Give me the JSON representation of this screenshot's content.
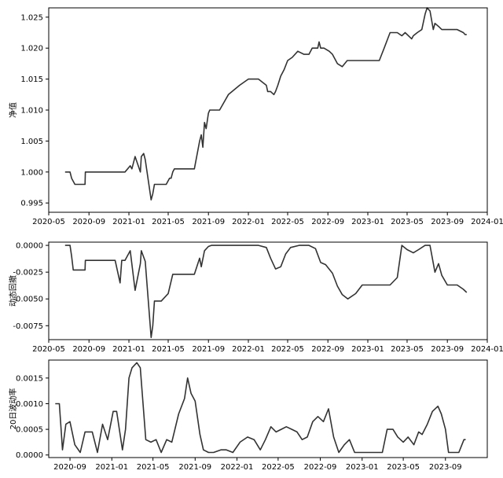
{
  "chart_data": [
    {
      "type": "line",
      "title": "",
      "xlabel": "",
      "ylabel": "净值",
      "xlim": [
        "2020-05-01",
        "2024-01-01"
      ],
      "ylim": [
        0.9935,
        1.0265
      ],
      "x_ticks": [
        "2020-05",
        "2020-09",
        "2021-01",
        "2021-05",
        "2021-09",
        "2022-01",
        "2022-05",
        "2022-09",
        "2023-01",
        "2023-05",
        "2023-09",
        "2024-01"
      ],
      "y_ticks": [
        0.995,
        1.0,
        1.005,
        1.01,
        1.015,
        1.02,
        1.025
      ],
      "y_tick_labels": [
        "0.995",
        "1.000",
        "1.005",
        "1.010",
        "1.015",
        "1.020",
        "1.025"
      ],
      "color": "#333333",
      "series": [
        {
          "x": [
            "2020-06-20",
            "2020-07-05",
            "2020-07-10",
            "2020-07-15",
            "2020-07-20",
            "2020-07-25",
            "2020-08-10",
            "2020-08-20",
            "2020-08-21",
            "2020-09-05",
            "2020-10-05",
            "2020-10-25",
            "2020-11-05",
            "2020-11-20",
            "2020-12-10",
            "2020-12-20",
            "2021-01-05",
            "2021-01-10",
            "2021-01-20",
            "2021-02-05",
            "2021-02-08",
            "2021-02-15",
            "2021-02-20",
            "2021-03-10",
            "2021-03-15",
            "2021-03-20",
            "2021-03-25",
            "2021-04-10",
            "2021-04-20",
            "2021-04-25",
            "2021-05-05",
            "2021-05-10",
            "2021-05-15",
            "2021-05-20",
            "2021-05-25",
            "2021-06-01",
            "2021-06-10",
            "2021-07-20",
            "2021-08-05",
            "2021-08-10",
            "2021-08-15",
            "2021-08-20",
            "2021-08-25",
            "2021-09-01",
            "2021-09-05",
            "2021-09-15",
            "2021-10-05",
            "2021-11-01",
            "2021-12-05",
            "2022-01-01",
            "2022-01-10",
            "2022-02-01",
            "2022-02-25",
            "2022-03-01",
            "2022-03-10",
            "2022-03-20",
            "2022-03-25",
            "2022-04-01",
            "2022-04-10",
            "2022-04-20",
            "2022-05-01",
            "2022-05-15",
            "2022-06-01",
            "2022-06-20",
            "2022-07-05",
            "2022-07-15",
            "2022-08-01",
            "2022-08-05",
            "2022-08-10",
            "2022-08-20",
            "2022-09-05",
            "2022-09-15",
            "2022-09-30",
            "2022-10-15",
            "2022-10-30",
            "2022-11-10",
            "2022-11-25",
            "2022-12-10",
            "2023-01-10",
            "2023-02-05",
            "2023-02-20",
            "2023-03-10",
            "2023-04-01",
            "2023-04-15",
            "2023-04-25",
            "2023-05-15",
            "2023-05-20",
            "2023-06-01",
            "2023-06-15",
            "2023-06-25",
            "2023-07-01",
            "2023-07-10",
            "2023-07-20",
            "2023-07-25",
            "2023-08-05",
            "2023-08-15",
            "2023-09-01",
            "2023-10-01",
            "2023-10-20",
            "2023-10-25",
            "2023-10-30"
          ],
          "y": [
            1.0,
            1.0,
            0.999,
            0.9985,
            0.998,
            0.998,
            0.998,
            0.998,
            1.0,
            1.0,
            1.0,
            1.0,
            1.0,
            1.0,
            1.0,
            1.0,
            1.001,
            1.0005,
            1.0025,
            1.0,
            1.0025,
            1.003,
            1.002,
            0.9955,
            0.9965,
            0.998,
            0.998,
            0.998,
            0.998,
            0.998,
            0.999,
            0.999,
            1.0,
            1.0005,
            1.0005,
            1.0005,
            1.0005,
            1.0005,
            1.005,
            1.006,
            1.004,
            1.008,
            1.007,
            1.0095,
            1.01,
            1.01,
            1.01,
            1.0125,
            1.014,
            1.015,
            1.015,
            1.015,
            1.014,
            1.013,
            1.013,
            1.0125,
            1.013,
            1.014,
            1.0155,
            1.0165,
            1.018,
            1.0185,
            1.0195,
            1.019,
            1.019,
            1.02,
            1.02,
            1.021,
            1.02,
            1.02,
            1.0195,
            1.019,
            1.0175,
            1.017,
            1.018,
            1.018,
            1.018,
            1.018,
            1.018,
            1.018,
            1.02,
            1.0225,
            1.0225,
            1.022,
            1.0225,
            1.0215,
            1.022,
            1.0225,
            1.023,
            1.0255,
            1.0265,
            1.026,
            1.023,
            1.024,
            1.0235,
            1.023,
            1.023,
            1.023,
            1.0225,
            1.0222,
            1.0222
          ]
        }
      ]
    },
    {
      "type": "line",
      "title": "",
      "xlabel": "",
      "ylabel": "动态回撤",
      "xlim": [
        "2020-05-01",
        "2024-01-01"
      ],
      "ylim": [
        -0.0088,
        0.0003
      ],
      "x_ticks": [
        "2020-05",
        "2020-09",
        "2021-01",
        "2021-05",
        "2021-09",
        "2022-01",
        "2022-05",
        "2022-09",
        "2023-01",
        "2023-05",
        "2023-09",
        "2024-01"
      ],
      "y_ticks": [
        0.0,
        -0.0025,
        -0.005,
        -0.0075
      ],
      "y_tick_labels": [
        "0.0000",
        "-0.0025",
        "-0.0050",
        "-0.0075"
      ],
      "color": "#333333",
      "series": [
        {
          "x": [
            "2020-06-20",
            "2020-07-05",
            "2020-07-10",
            "2020-07-15",
            "2020-08-20",
            "2020-08-21",
            "2020-09-05",
            "2020-10-05",
            "2020-11-20",
            "2020-12-05",
            "2020-12-10",
            "2020-12-20",
            "2021-01-05",
            "2021-01-20",
            "2021-02-05",
            "2021-02-08",
            "2021-02-20",
            "2021-03-10",
            "2021-03-15",
            "2021-03-20",
            "2021-04-10",
            "2021-05-01",
            "2021-05-15",
            "2021-06-01",
            "2021-07-20",
            "2021-08-05",
            "2021-08-10",
            "2021-08-20",
            "2021-09-01",
            "2021-09-10",
            "2021-10-15",
            "2021-11-15",
            "2021-12-15",
            "2022-01-01",
            "2022-02-01",
            "2022-02-25",
            "2022-03-10",
            "2022-03-25",
            "2022-04-10",
            "2022-04-25",
            "2022-05-10",
            "2022-06-05",
            "2022-07-05",
            "2022-07-25",
            "2022-08-10",
            "2022-08-25",
            "2022-09-15",
            "2022-09-30",
            "2022-10-15",
            "2022-11-01",
            "2022-11-25",
            "2022-12-15",
            "2023-01-15",
            "2023-02-20",
            "2023-03-10",
            "2023-04-01",
            "2023-04-15",
            "2023-05-01",
            "2023-05-20",
            "2023-06-05",
            "2023-06-25",
            "2023-07-10",
            "2023-07-25",
            "2023-08-05",
            "2023-08-15",
            "2023-09-01",
            "2023-10-01",
            "2023-10-20",
            "2023-10-30"
          ],
          "y": [
            0.0,
            0.0,
            -0.001,
            -0.0023,
            -0.0023,
            -0.0014,
            -0.0014,
            -0.0014,
            -0.0014,
            -0.0035,
            -0.0014,
            -0.0014,
            -0.0005,
            -0.0042,
            -0.0017,
            -0.0005,
            -0.0015,
            -0.0086,
            -0.0075,
            -0.0052,
            -0.0052,
            -0.0045,
            -0.0027,
            -0.0027,
            -0.0027,
            -0.0012,
            -0.002,
            -0.0005,
            -0.0001,
            0.0,
            0.0,
            0.0,
            0.0,
            0.0,
            0.0,
            -0.0002,
            -0.0012,
            -0.0022,
            -0.002,
            -0.0008,
            -0.0002,
            0.0,
            0.0,
            -0.0003,
            -0.0016,
            -0.0018,
            -0.0026,
            -0.0038,
            -0.0046,
            -0.005,
            -0.0045,
            -0.0037,
            -0.0037,
            -0.0037,
            -0.0037,
            -0.003,
            0.0,
            -0.0004,
            -0.0007,
            -0.0004,
            0.0,
            0.0,
            -0.0025,
            -0.0017,
            -0.0028,
            -0.0037,
            -0.0037,
            -0.0041,
            -0.0044
          ]
        }
      ]
    },
    {
      "type": "line",
      "title": "",
      "xlabel": "",
      "ylabel": "20日波动率",
      "xlim": [
        "2020-07-01",
        "2024-01-01"
      ],
      "ylim": [
        -5e-05,
        0.00185
      ],
      "x_ticks": [
        "2020-09",
        "2021-01",
        "2021-05",
        "2021-09",
        "2022-01",
        "2022-05",
        "2022-09",
        "2023-01",
        "2023-05",
        "2023-09"
      ],
      "y_ticks": [
        0.0,
        0.0005,
        0.001,
        0.0015
      ],
      "y_tick_labels": [
        "0.0000",
        "0.0005",
        "0.0010",
        "0.0015"
      ],
      "color": "#333333",
      "series": [
        {
          "x": [
            "2020-07-20",
            "2020-08-01",
            "2020-08-05",
            "2020-08-10",
            "2020-08-20",
            "2020-09-01",
            "2020-09-15",
            "2020-10-01",
            "2020-10-15",
            "2020-11-05",
            "2020-11-20",
            "2020-12-05",
            "2020-12-20",
            "2021-01-05",
            "2021-01-15",
            "2021-02-01",
            "2021-02-10",
            "2021-02-20",
            "2021-03-01",
            "2021-03-15",
            "2021-03-25",
            "2021-04-10",
            "2021-04-25",
            "2021-05-10",
            "2021-05-25",
            "2021-06-10",
            "2021-06-25",
            "2021-07-15",
            "2021-08-01",
            "2021-08-10",
            "2021-08-20",
            "2021-09-01",
            "2021-09-15",
            "2021-09-25",
            "2021-10-10",
            "2021-10-25",
            "2021-11-15",
            "2021-12-01",
            "2021-12-20",
            "2022-01-10",
            "2022-02-01",
            "2022-02-20",
            "2022-03-10",
            "2022-03-25",
            "2022-04-10",
            "2022-04-25",
            "2022-05-10",
            "2022-05-25",
            "2022-06-10",
            "2022-06-25",
            "2022-07-10",
            "2022-07-25",
            "2022-08-10",
            "2022-08-25",
            "2022-09-10",
            "2022-09-25",
            "2022-10-10",
            "2022-10-25",
            "2022-11-10",
            "2022-11-25",
            "2022-12-10",
            "2023-01-01",
            "2023-02-01",
            "2023-03-01",
            "2023-03-15",
            "2023-04-01",
            "2023-04-15",
            "2023-05-01",
            "2023-05-15",
            "2023-06-01",
            "2023-06-15",
            "2023-06-25",
            "2023-07-10",
            "2023-07-25",
            "2023-08-10",
            "2023-08-20",
            "2023-09-01",
            "2023-09-10",
            "2023-10-01",
            "2023-10-10",
            "2023-10-25",
            "2023-10-30"
          ],
          "y": [
            0.001,
            0.001,
            0.0006,
            0.0001,
            0.0006,
            0.00065,
            0.0002,
            5e-05,
            0.00045,
            0.00045,
            5e-05,
            0.0006,
            0.0003,
            0.00085,
            0.00085,
            0.0001,
            0.0005,
            0.0015,
            0.0017,
            0.0018,
            0.0017,
            0.0003,
            0.00025,
            0.0003,
            5e-05,
            0.0003,
            0.00025,
            0.0008,
            0.0011,
            0.0015,
            0.0012,
            0.00105,
            0.0004,
            0.0001,
            5e-05,
            5e-05,
            0.0001,
            0.0001,
            5e-05,
            0.00025,
            0.00035,
            0.0003,
            0.0001,
            0.0003,
            0.00055,
            0.00045,
            0.0005,
            0.00055,
            0.0005,
            0.00045,
            0.0003,
            0.00035,
            0.00065,
            0.00075,
            0.00065,
            0.0009,
            0.00035,
            5e-05,
            0.0002,
            0.0003,
            5e-05,
            5e-05,
            5e-05,
            5e-05,
            0.0005,
            0.0005,
            0.00035,
            0.00025,
            0.00035,
            0.0002,
            0.00045,
            0.0004,
            0.0006,
            0.00085,
            0.00095,
            0.0008,
            0.0005,
            5e-05,
            5e-05,
            5e-05,
            0.0003,
            0.0003
          ]
        }
      ]
    }
  ]
}
